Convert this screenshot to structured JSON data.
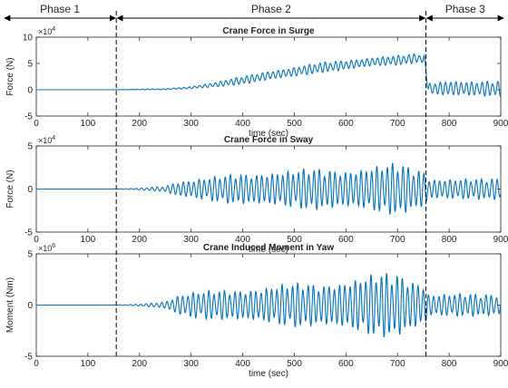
{
  "phases": [
    {
      "label": "Phase 1",
      "start": 0,
      "end": 155
    },
    {
      "label": "Phase 2",
      "start": 155,
      "end": 755
    },
    {
      "label": "Phase 3",
      "start": 755,
      "end": 900
    }
  ],
  "line_color": "#0072BD",
  "chart_data": [
    {
      "type": "line",
      "title": "Crane Force in Surge",
      "xlabel": "time (sec)",
      "ylabel": "Force (N)",
      "multiplier": "×10",
      "multiplier_exp": "4",
      "xlim": [
        0,
        900
      ],
      "ylim": [
        -5,
        10
      ],
      "xticks": [
        0,
        100,
        200,
        300,
        400,
        500,
        600,
        700,
        800,
        900
      ],
      "yticks": [
        -5,
        0,
        5,
        10
      ],
      "envelope": {
        "t": [
          0,
          150,
          250,
          300,
          350,
          400,
          450,
          500,
          550,
          600,
          650,
          700,
          740,
          752,
          760,
          800,
          850,
          900
        ],
        "mean": [
          0,
          0,
          0.1,
          0.4,
          1.0,
          1.8,
          2.7,
          3.4,
          4.2,
          4.7,
          5.3,
          5.6,
          6.0,
          5.8,
          0.2,
          0.3,
          0.2,
          0.2
        ],
        "amp": [
          0,
          0,
          0.1,
          0.25,
          0.5,
          0.8,
          1.0,
          1.0,
          1.0,
          1.0,
          1.0,
          1.0,
          0.9,
          0.9,
          1.2,
          1.8,
          1.5,
          1.5
        ]
      }
    },
    {
      "type": "line",
      "title": "Crane Force in Sway",
      "xlabel": "time (sec)",
      "ylabel": "Force (N)",
      "multiplier": "×10",
      "multiplier_exp": "4",
      "xlim": [
        0,
        900
      ],
      "ylim": [
        -5,
        5
      ],
      "xticks": [
        0,
        100,
        200,
        300,
        400,
        500,
        600,
        700,
        800,
        900
      ],
      "yticks": [
        -5,
        0,
        5
      ],
      "envelope": {
        "t": [
          0,
          150,
          200,
          250,
          270,
          300,
          350,
          400,
          450,
          500,
          550,
          600,
          650,
          700,
          720,
          755,
          760,
          800,
          850,
          900
        ],
        "mean": [
          0,
          0,
          0,
          0,
          0,
          0,
          0,
          0,
          0,
          0,
          0,
          0,
          0,
          0,
          0,
          0,
          0,
          0,
          0,
          0
        ],
        "amp": [
          0,
          0,
          0.1,
          0.4,
          1.0,
          1.2,
          1.5,
          2.0,
          2.3,
          2.3,
          2.5,
          2.6,
          2.9,
          3.1,
          2.8,
          2.4,
          1.4,
          1.4,
          1.2,
          1.3
        ]
      }
    },
    {
      "type": "line",
      "title": "Crane Induced Moment in Yaw",
      "xlabel": "time (sec)",
      "ylabel": "Moment (Nm)",
      "multiplier": "×10",
      "multiplier_exp": "6",
      "xlim": [
        0,
        900
      ],
      "ylim": [
        -5,
        5
      ],
      "xticks": [
        0,
        100,
        200,
        300,
        400,
        500,
        600,
        700,
        800,
        900
      ],
      "yticks": [
        -5,
        0,
        5
      ],
      "envelope": {
        "t": [
          0,
          150,
          200,
          250,
          270,
          300,
          350,
          400,
          450,
          500,
          550,
          600,
          650,
          700,
          720,
          755,
          760,
          800,
          850,
          900
        ],
        "mean": [
          0,
          0,
          0,
          0,
          0,
          0,
          0,
          0,
          0,
          0,
          0,
          0,
          0,
          0,
          0,
          0,
          0,
          0,
          0,
          0
        ],
        "amp": [
          0,
          0,
          0.1,
          0.4,
          1.0,
          1.3,
          1.5,
          1.8,
          2.0,
          2.2,
          2.3,
          2.8,
          3.1,
          3.3,
          3.0,
          2.4,
          1.3,
          1.2,
          1.1,
          1.2
        ]
      }
    }
  ]
}
